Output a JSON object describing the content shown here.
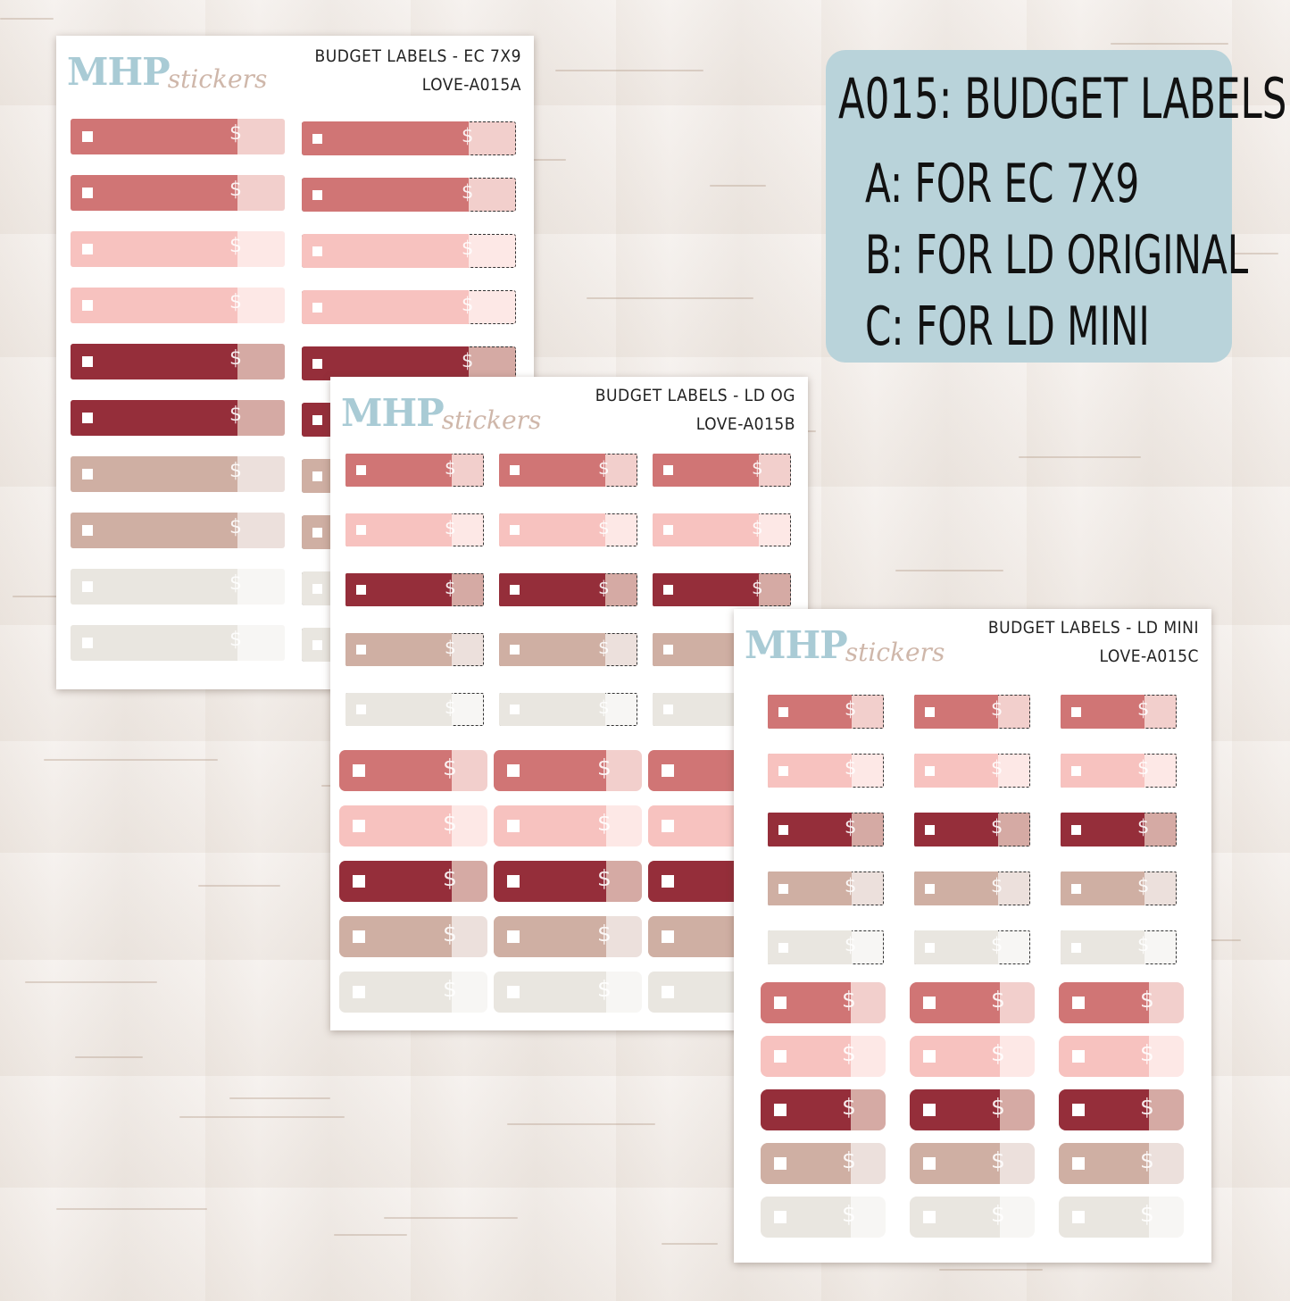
{
  "info_card": {
    "heading": "A015: BUDGET LABELS",
    "lines": [
      "A: FOR EC 7X9",
      "B: FOR LD ORIGINAL",
      "C: FOR LD MINI"
    ]
  },
  "sheets": [
    {
      "id": "a",
      "logo_main": "MHP",
      "logo_script": "stickers",
      "title": "BUDGET LABELS - EC 7X9",
      "code": "LOVE-A015A"
    },
    {
      "id": "b",
      "logo_main": "MHP",
      "logo_script": "stickers",
      "title": "BUDGET LABELS - LD OG",
      "code": "LOVE-A015B"
    },
    {
      "id": "c",
      "logo_main": "MHP",
      "logo_script": "stickers",
      "title": "BUDGET LABELS - LD MINI",
      "code": "LOVE-A015C"
    }
  ],
  "label_symbol": "$",
  "palette": [
    {
      "name": "rose",
      "main": "#d07575",
      "tab": "#f2cfcc"
    },
    {
      "name": "blush",
      "main": "#f7c2bf",
      "tab": "#fde8e6"
    },
    {
      "name": "wine",
      "main": "#952e3a",
      "tab": "#d5aaa4"
    },
    {
      "name": "taupe",
      "main": "#cfafa3",
      "tab": "#ece0dc"
    },
    {
      "name": "linen",
      "main": "#e9e6e0",
      "tab": "#f7f6f4"
    }
  ]
}
